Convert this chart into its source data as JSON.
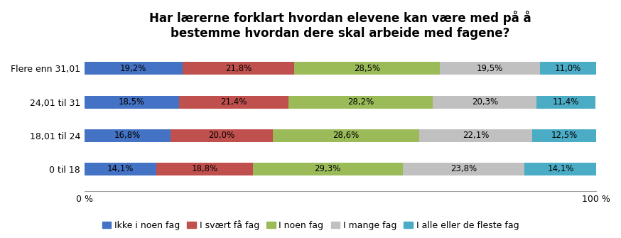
{
  "title": "Har lærerne forklart hvordan elevene kan være med på å\nbestemme hvordan dere skal arbeide med fagene?",
  "categories": [
    "0 til 18",
    "18,01 til 24",
    "24,01 til 31",
    "Flere enn 31,01"
  ],
  "series": [
    {
      "label": "Ikke i noen fag",
      "color": "#4472C4",
      "values": [
        14.1,
        16.8,
        18.5,
        19.2
      ]
    },
    {
      "label": "I svært få fag",
      "color": "#C0504D",
      "values": [
        18.8,
        20.0,
        21.4,
        21.8
      ]
    },
    {
      "label": "I noen fag",
      "color": "#9BBB59",
      "values": [
        29.3,
        28.6,
        28.2,
        28.5
      ]
    },
    {
      "label": "I mange fag",
      "color": "#C0C0C0",
      "values": [
        23.8,
        22.1,
        20.3,
        19.5
      ]
    },
    {
      "label": "I alle eller de fleste fag",
      "color": "#4BACC6",
      "values": [
        14.1,
        12.5,
        11.4,
        11.0
      ]
    }
  ],
  "title_fontsize": 12,
  "label_fontsize": 8.5,
  "tick_fontsize": 9,
  "legend_fontsize": 9,
  "bar_height": 0.38,
  "bar_spacing": 1.0,
  "xlim": [
    0,
    100
  ],
  "xticks": [
    0,
    100
  ],
  "xticklabels": [
    "0 %",
    "100 %"
  ],
  "background_color": "#FFFFFF",
  "text_color": "#000000"
}
